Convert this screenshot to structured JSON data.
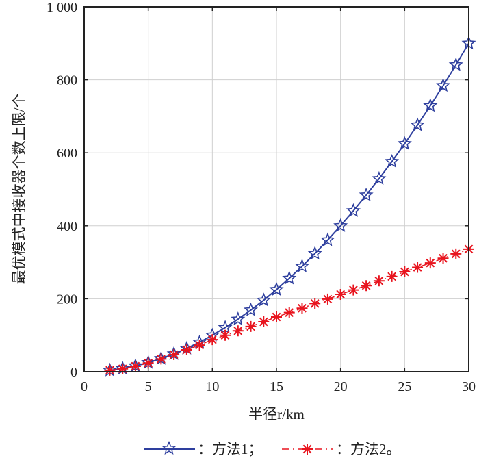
{
  "chart_data": {
    "type": "line",
    "title": "",
    "xlabel": "半径r/km",
    "ylabel": "最优模式中接收器个数上限/个",
    "xlim": [
      0,
      30
    ],
    "ylim": [
      0,
      1000
    ],
    "xticks": [
      0,
      5,
      10,
      15,
      20,
      25,
      30
    ],
    "xtick_labels": [
      "0",
      "5",
      "10",
      "15",
      "20",
      "25",
      "30"
    ],
    "yticks": [
      0,
      200,
      400,
      600,
      800,
      1000
    ],
    "ytick_labels": [
      "0",
      "200",
      "400",
      "600",
      "800",
      "1 000"
    ],
    "grid": true,
    "legend_placement": "bottom",
    "x": [
      2,
      3,
      4,
      5,
      6,
      7,
      8,
      9,
      10,
      11,
      12,
      13,
      14,
      15,
      16,
      17,
      18,
      19,
      20,
      21,
      22,
      23,
      24,
      25,
      26,
      27,
      28,
      29,
      30
    ],
    "series": [
      {
        "name": "：方法1；",
        "color": "#2e3f9e",
        "marker": "star",
        "line": "solid",
        "values": [
          4,
          9,
          16,
          25,
          36,
          49,
          64,
          81,
          100,
          121,
          144,
          169,
          196,
          225,
          256,
          289,
          324,
          361,
          400,
          441,
          484,
          529,
          576,
          625,
          676,
          729,
          784,
          841,
          900
        ]
      },
      {
        "name": "：方法2。",
        "color": "#e8141e",
        "marker": "asterisk",
        "line": "dashdot",
        "values": [
          4,
          8,
          15,
          24,
          35,
          47,
          60,
          73,
          88,
          100,
          112,
          124,
          137,
          150,
          162,
          174,
          187,
          199,
          212,
          224,
          236,
          249,
          261,
          274,
          286,
          298,
          311,
          323,
          336
        ]
      }
    ]
  }
}
